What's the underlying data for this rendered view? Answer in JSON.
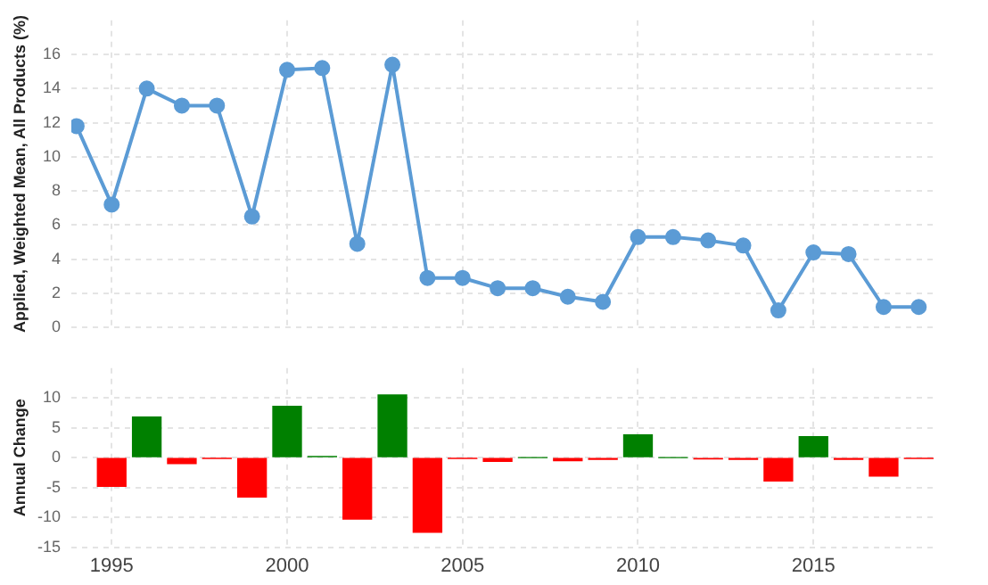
{
  "chart_data": [
    {
      "type": "line",
      "ylabel": "Applied, Weighted Mean, All Products (%)",
      "x": [
        1994,
        1995,
        1996,
        1997,
        1998,
        1999,
        2000,
        2001,
        2002,
        2003,
        2004,
        2005,
        2006,
        2007,
        2008,
        2009,
        2010,
        2011,
        2012,
        2013,
        2014,
        2015,
        2016,
        2017,
        2018
      ],
      "series": [
        {
          "color": "#5b9bd5",
          "values": [
            11.8,
            7.2,
            14.0,
            13.0,
            13.0,
            6.5,
            15.1,
            15.2,
            4.9,
            15.4,
            2.9,
            2.9,
            2.3,
            2.3,
            1.8,
            1.5,
            5.3,
            5.3,
            5.1,
            4.8,
            1.0,
            4.4,
            4.3,
            1.2,
            1.2
          ]
        }
      ],
      "xlim": [
        1993.85,
        2018.45
      ],
      "xticks": [
        1995,
        2000,
        2005,
        2010,
        2015
      ],
      "ylim": [
        0,
        18
      ],
      "yticks": [
        0,
        2,
        4,
        6,
        8,
        10,
        12,
        14,
        16
      ],
      "tick_labels": "y",
      "grid": true,
      "marker": "circle",
      "line_style": "solid",
      "legend": false
    },
    {
      "type": "bar",
      "ylabel": "Annual Change",
      "x": [
        1995,
        1996,
        1997,
        1998,
        1999,
        2000,
        2001,
        2002,
        2003,
        2004,
        2005,
        2006,
        2007,
        2008,
        2009,
        2010,
        2011,
        2012,
        2013,
        2014,
        2015,
        2016,
        2017,
        2018
      ],
      "values": [
        -4.8,
        6.8,
        -1.0,
        -0.1,
        -6.6,
        8.6,
        0.2,
        -10.3,
        10.5,
        -12.5,
        -0.1,
        -0.6,
        0.0,
        -0.5,
        -0.3,
        3.8,
        0.0,
        -0.2,
        -0.3,
        -3.9,
        3.5,
        -0.3,
        -3.1,
        -0.1
      ],
      "colors": [
        "#ff0000",
        "#008000",
        "#ff0000",
        "#ff0000",
        "#ff0000",
        "#008000",
        "#008000",
        "#ff0000",
        "#008000",
        "#ff0000",
        "#ff0000",
        "#ff0000",
        "#008000",
        "#ff0000",
        "#ff0000",
        "#008000",
        "#008000",
        "#ff0000",
        "#ff0000",
        "#ff0000",
        "#008000",
        "#ff0000",
        "#ff0000",
        "#ff0000"
      ],
      "xlim": [
        1993.85,
        2018.45
      ],
      "xticks": [
        1995,
        2000,
        2005,
        2010,
        2015
      ],
      "ylim": [
        -15,
        15
      ],
      "yticks": [
        -15,
        -10,
        -5,
        0,
        5,
        10
      ],
      "grid": true,
      "legend": false
    }
  ]
}
